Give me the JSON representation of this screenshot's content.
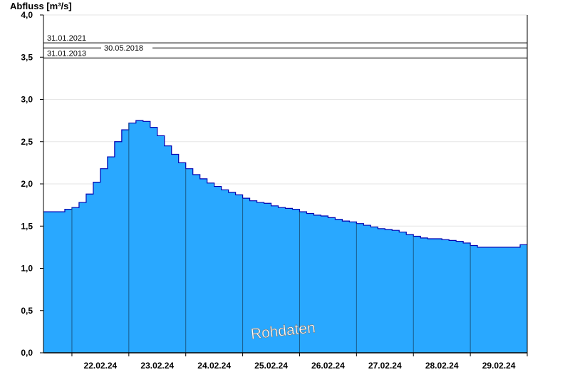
{
  "chart_data": {
    "type": "area",
    "ylabel": "Abfluss [m³/s]",
    "ylim": [
      0,
      4.0
    ],
    "yticks": [
      "0,0",
      "0,5",
      "1,0",
      "1,5",
      "2,0",
      "2,5",
      "3,0",
      "3,5",
      "4,0"
    ],
    "x_start": "2024-02-21T12:00",
    "x_end": "2024-03-01T00:00",
    "categories": [
      "22.02.24",
      "23.02.24",
      "24.02.24",
      "25.02.24",
      "26.02.24",
      "27.02.24",
      "28.02.24",
      "29.02.24"
    ],
    "fill_color": "#29a8ff",
    "line_color": "#0000b0",
    "grid": true,
    "series": [
      {
        "values": [
          [
            "2024-02-21T12:00",
            1.67
          ],
          [
            "2024-02-21T20:00",
            1.67
          ],
          [
            "2024-02-21T21:00",
            1.7
          ],
          [
            "2024-02-22T00:00",
            1.72
          ],
          [
            "2024-02-22T03:00",
            1.78
          ],
          [
            "2024-02-22T06:00",
            1.88
          ],
          [
            "2024-02-22T09:00",
            2.02
          ],
          [
            "2024-02-22T12:00",
            2.18
          ],
          [
            "2024-02-22T15:00",
            2.32
          ],
          [
            "2024-02-22T18:00",
            2.5
          ],
          [
            "2024-02-22T21:00",
            2.64
          ],
          [
            "2024-02-23T00:00",
            2.72
          ],
          [
            "2024-02-23T03:00",
            2.75
          ],
          [
            "2024-02-23T06:00",
            2.74
          ],
          [
            "2024-02-23T09:00",
            2.67
          ],
          [
            "2024-02-23T12:00",
            2.57
          ],
          [
            "2024-02-23T15:00",
            2.45
          ],
          [
            "2024-02-23T18:00",
            2.35
          ],
          [
            "2024-02-23T21:00",
            2.25
          ],
          [
            "2024-02-24T00:00",
            2.18
          ],
          [
            "2024-02-24T03:00",
            2.11
          ],
          [
            "2024-02-24T06:00",
            2.06
          ],
          [
            "2024-02-24T09:00",
            2.01
          ],
          [
            "2024-02-24T12:00",
            1.97
          ],
          [
            "2024-02-24T15:00",
            1.93
          ],
          [
            "2024-02-24T18:00",
            1.9
          ],
          [
            "2024-02-24T21:00",
            1.87
          ],
          [
            "2024-02-25T00:00",
            1.83
          ],
          [
            "2024-02-25T03:00",
            1.8
          ],
          [
            "2024-02-25T06:00",
            1.78
          ],
          [
            "2024-02-25T09:00",
            1.77
          ],
          [
            "2024-02-25T12:00",
            1.74
          ],
          [
            "2024-02-25T15:00",
            1.72
          ],
          [
            "2024-02-25T18:00",
            1.71
          ],
          [
            "2024-02-25T21:00",
            1.7
          ],
          [
            "2024-02-26T00:00",
            1.67
          ],
          [
            "2024-02-26T03:00",
            1.65
          ],
          [
            "2024-02-26T06:00",
            1.63
          ],
          [
            "2024-02-26T09:00",
            1.62
          ],
          [
            "2024-02-26T12:00",
            1.6
          ],
          [
            "2024-02-26T15:00",
            1.58
          ],
          [
            "2024-02-26T18:00",
            1.56
          ],
          [
            "2024-02-26T21:00",
            1.55
          ],
          [
            "2024-02-27T00:00",
            1.53
          ],
          [
            "2024-02-27T03:00",
            1.51
          ],
          [
            "2024-02-27T06:00",
            1.49
          ],
          [
            "2024-02-27T09:00",
            1.47
          ],
          [
            "2024-02-27T12:00",
            1.46
          ],
          [
            "2024-02-27T15:00",
            1.45
          ],
          [
            "2024-02-27T18:00",
            1.43
          ],
          [
            "2024-02-27T21:00",
            1.4
          ],
          [
            "2024-02-28T00:00",
            1.38
          ],
          [
            "2024-02-28T03:00",
            1.36
          ],
          [
            "2024-02-28T06:00",
            1.35
          ],
          [
            "2024-02-28T09:00",
            1.35
          ],
          [
            "2024-02-28T12:00",
            1.34
          ],
          [
            "2024-02-28T15:00",
            1.33
          ],
          [
            "2024-02-28T18:00",
            1.32
          ],
          [
            "2024-02-28T21:00",
            1.3
          ],
          [
            "2024-02-29T00:00",
            1.27
          ],
          [
            "2024-02-29T03:00",
            1.25
          ],
          [
            "2024-02-29T06:00",
            1.25
          ],
          [
            "2024-02-29T09:00",
            1.25
          ],
          [
            "2024-02-29T12:00",
            1.25
          ],
          [
            "2024-02-29T15:00",
            1.25
          ],
          [
            "2024-02-29T18:00",
            1.25
          ],
          [
            "2024-02-29T21:00",
            1.28
          ],
          [
            "2024-03-01T00:00",
            1.28
          ]
        ]
      }
    ],
    "reference_lines": [
      {
        "label": "31.01.2021",
        "value": 3.67
      },
      {
        "label": "30.05.2018",
        "value": 3.61
      },
      {
        "label": "31.01.2013",
        "value": 3.49
      }
    ],
    "annotations": [
      {
        "text": "Rohdaten"
      }
    ]
  }
}
